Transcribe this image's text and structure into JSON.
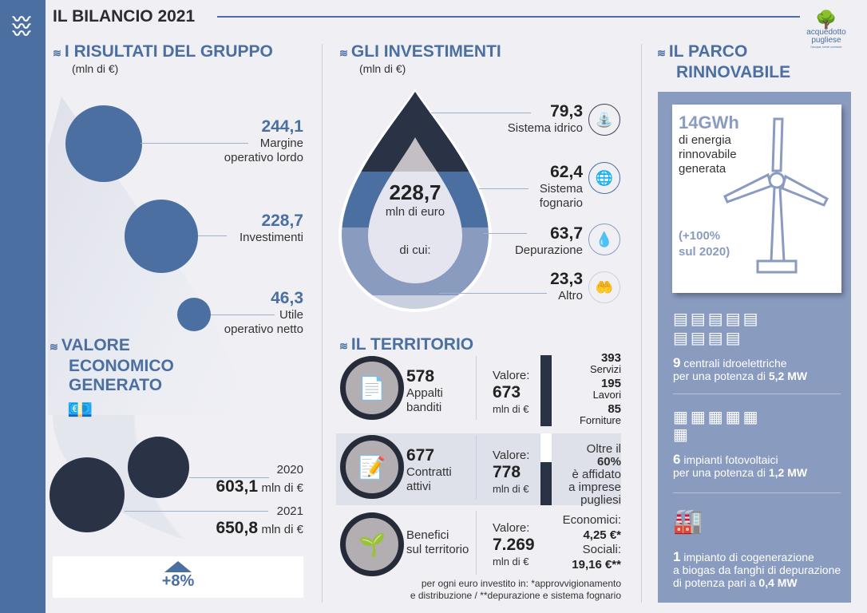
{
  "header": {
    "title": "IL BILANCIO 2021",
    "logo": {
      "name": "acquedotto",
      "name2": "pugliese",
      "tagline": "l'acqua, bene comune"
    }
  },
  "risultati": {
    "title": "I RISULTATI DEL GRUPPO",
    "unit": "(mln di €)",
    "items": [
      {
        "value": "244,1",
        "label1": "Margine",
        "label2": "operativo lordo"
      },
      {
        "value": "228,7",
        "label1": "Investimenti",
        "label2": ""
      },
      {
        "value": "46,3",
        "label1": "Utile",
        "label2": "operativo netto"
      }
    ]
  },
  "valore": {
    "title1": "VALORE",
    "title2": "ECONOMICO",
    "title3": "GENERATO",
    "icon": "money-stack-icon",
    "years": [
      {
        "year": "2020",
        "value": "603,1",
        "unit": "mln di €"
      },
      {
        "year": "2021",
        "value": "650,8",
        "unit": "mln di €"
      }
    ],
    "change": "+8%"
  },
  "investimenti": {
    "title": "GLI INVESTIMENTI",
    "unit": "(mln di €)",
    "total": "228,7",
    "total_unit": "mln di euro",
    "of_which": "di cui:",
    "items": [
      {
        "value": "79,3",
        "label1": "Sistema idrico",
        "label2": "",
        "icon": "water-system-icon"
      },
      {
        "value": "62,4",
        "label1": "Sistema",
        "label2": "fognario",
        "icon": "sewer-icon"
      },
      {
        "value": "63,7",
        "label1": "Depurazione",
        "label2": "",
        "icon": "purification-icon"
      },
      {
        "value": "23,3",
        "label1": "Altro",
        "label2": "",
        "icon": "hands-drop-icon"
      }
    ],
    "colors": [
      "#2a3245",
      "#4a6fa0",
      "#8a9bc0",
      "#c9d0e0"
    ]
  },
  "territorio": {
    "title": "IL TERRITORIO",
    "rows": [
      {
        "count": "578",
        "label1": "Appalti",
        "label2": "banditi",
        "valore_label": "Valore:",
        "valore": "673",
        "unit": "mln di €",
        "icon": "document-icon",
        "breakdown": [
          {
            "value": "393",
            "label": "Servizi"
          },
          {
            "value": "195",
            "label": "Lavori"
          },
          {
            "value": "85",
            "label": "Forniture"
          }
        ]
      },
      {
        "count": "677",
        "label1": "Contratti",
        "label2": "attivi",
        "valore_label": "Valore:",
        "valore": "778",
        "unit": "mln di €",
        "icon": "signed-contract-icon",
        "note1": "Oltre il",
        "note_pct": "60%",
        "note2": "è affidato",
        "note3": "a imprese",
        "note4": "pugliesi",
        "share": 0.6
      },
      {
        "count": "",
        "label1": "Benefici",
        "label2": "sul territorio",
        "valore_label": "Valore:",
        "valore": "7.269",
        "unit": "mln di €",
        "icon": "plant-hand-icon",
        "eco_label": "Economici:",
        "eco_value": "4,25 €*",
        "soc_label": "Sociali:",
        "soc_value": "19,16 €**"
      }
    ],
    "footnote1": "per ogni euro investito in: *approvvigionamento",
    "footnote2": "e distribuzione  /  **depurazione e sistema fognario"
  },
  "parco": {
    "title1": "IL PARCO",
    "title2": "RINNOVABILE",
    "energy": "14GWh",
    "energy_l1": "di energia",
    "energy_l2": "rinnovabile",
    "energy_l3": "generata",
    "growth1": "(+100%",
    "growth2": "sul 2020)",
    "hydro": {
      "count": "9",
      "text1": "centrali idroelettriche",
      "text2": "per una potenza di",
      "power": "5,2 MW"
    },
    "solar": {
      "count": "6",
      "text1": "impianti fotovoltaici",
      "text2": "per una potenza di",
      "power": "1,2 MW"
    },
    "cogen": {
      "count": "1",
      "text1": "impianto di cogenerazione",
      "text2": "a biogas da fanghi di depurazione",
      "text3": "di potenza pari a",
      "power": "0,4 MW"
    }
  }
}
